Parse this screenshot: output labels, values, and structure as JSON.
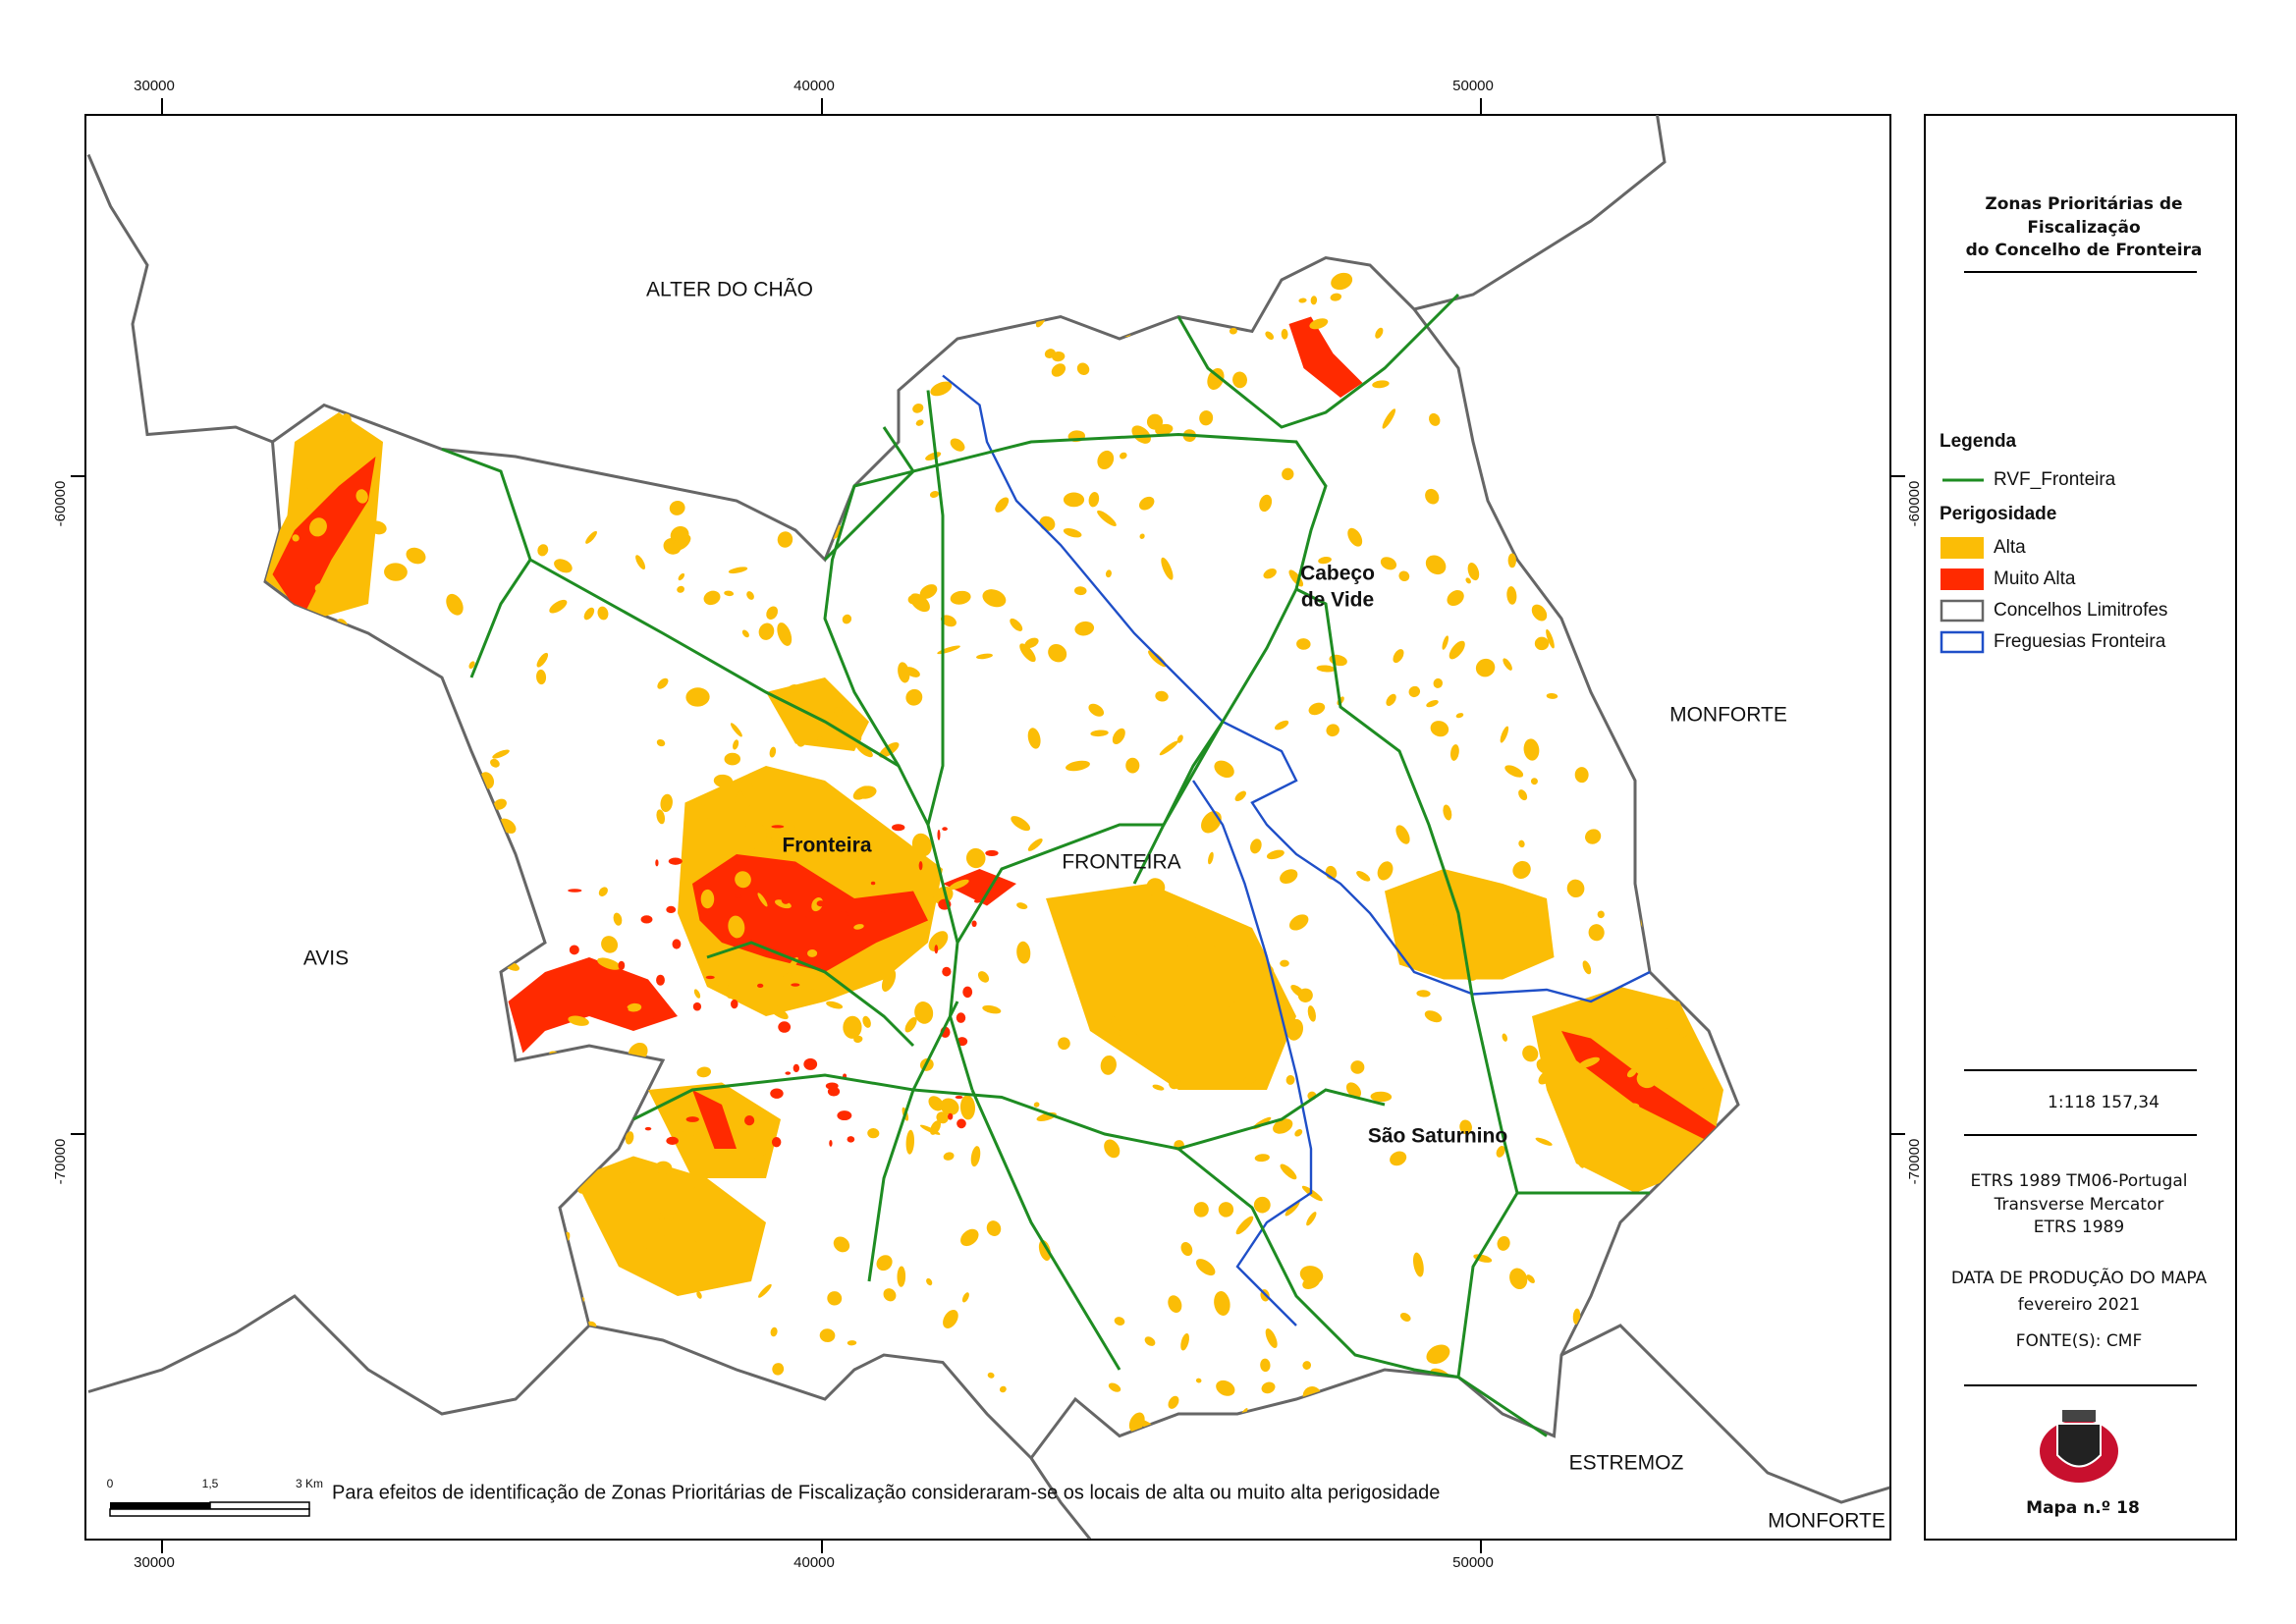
{
  "map": {
    "grid": {
      "x_top": [
        "30000",
        "40000",
        "50000"
      ],
      "x_bottom": [
        "30000",
        "40000",
        "50000"
      ],
      "y_left": [
        "-60000",
        "-70000"
      ],
      "y_right": [
        "-60000",
        "-70000"
      ]
    },
    "places": {
      "alter": "ALTER DO CHÃO",
      "monforte": "MONFORTE",
      "avis": "AVIS",
      "fronteira_parish": "FRONTEIRA",
      "fronteira_town": "Fronteira",
      "cabeco": [
        "Cabeço",
        "de Vide"
      ],
      "sao_saturnino": "São Saturnino",
      "estremoz": "ESTREMOZ",
      "monforte_south": "MONFORTE"
    },
    "scale_bar": [
      "0",
      "1,5",
      "3 Km"
    ],
    "note": "Para efeitos de identificação de Zonas Prioritárias de Fiscalização consideraram-se os locais de alta ou muito alta perigosidade"
  },
  "panel": {
    "title": [
      "Zonas Prioritárias de",
      "Fiscalização",
      "do Concelho de Fronteira"
    ],
    "legend": {
      "title": "Legenda",
      "line": "RVF_Fronteira",
      "subtitle": "Perigosidade",
      "items": [
        "Alta",
        "Muito Alta",
        "Concelhos Limitrofes",
        "Freguesias Fronteira"
      ]
    },
    "scale": "1:118 157,34",
    "projection": [
      "ETRS 1989 TM06-Portugal",
      "Transverse Mercator",
      "ETRS 1989"
    ],
    "date_label": "DATA DE PRODUÇÃO DO MAPA",
    "date": "fevereiro 2021",
    "source": "FONTE(S): CMF",
    "map_number": "Mapa n.º 18"
  }
}
